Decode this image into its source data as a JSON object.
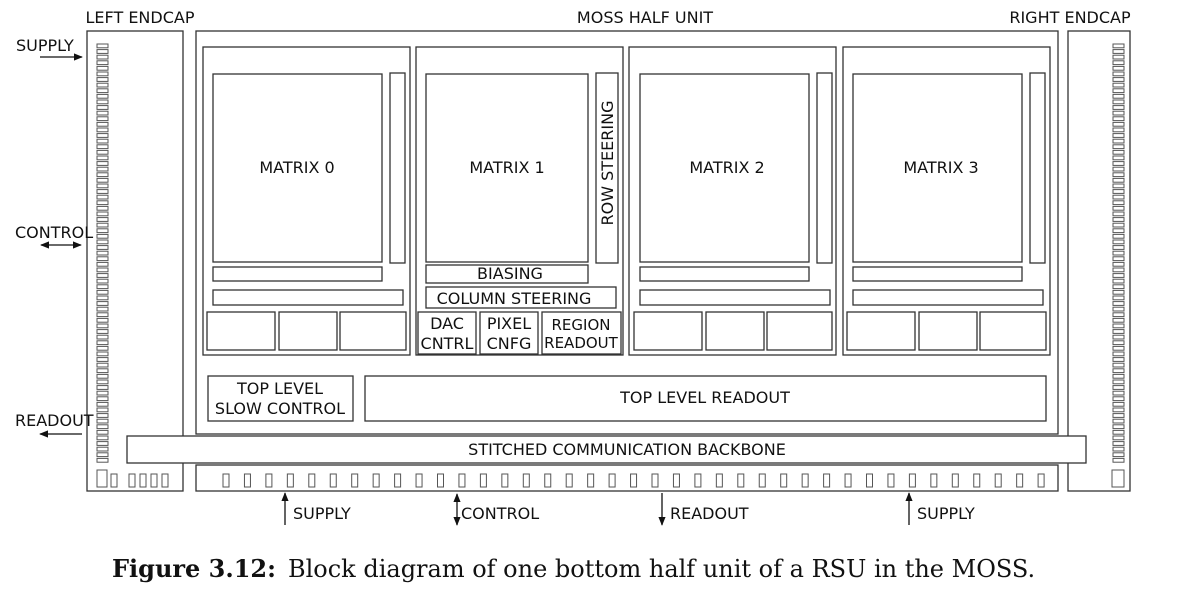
{
  "title": "MOSS HALF UNIT",
  "left_endcap": "LEFT ENDCAP",
  "right_endcap": "RIGHT ENDCAP",
  "left_signals": {
    "supply": "SUPPLY",
    "control": "CONTROL",
    "readout": "READOUT"
  },
  "matrices": [
    "MATRIX 0",
    "MATRIX 1",
    "MATRIX 2",
    "MATRIX 3"
  ],
  "row_steering": "ROW STEERING",
  "biasing": "BIASING",
  "column_steering": "COLUMN STEERING",
  "dac_control": {
    "line1": "DAC",
    "line2": "CNTRL"
  },
  "pixel_config": {
    "line1": "PIXEL",
    "line2": "CNFG"
  },
  "region_readout": {
    "line1": "REGION",
    "line2": "READOUT"
  },
  "top_level_slow_control": {
    "line1": "TOP LEVEL",
    "line2": "SLOW CONTROL"
  },
  "top_level_readout": "TOP LEVEL READOUT",
  "backbone": "STITCHED COMMUNICATION BACKBONE",
  "bottom_signals": {
    "supply_left": "SUPPLY",
    "control": "CONTROL",
    "readout": "READOUT",
    "supply_right": "SUPPLY"
  },
  "caption": {
    "label": "Figure 3.12:",
    "text": "Block diagram of one bottom half unit of a RSU in the MOSS."
  }
}
